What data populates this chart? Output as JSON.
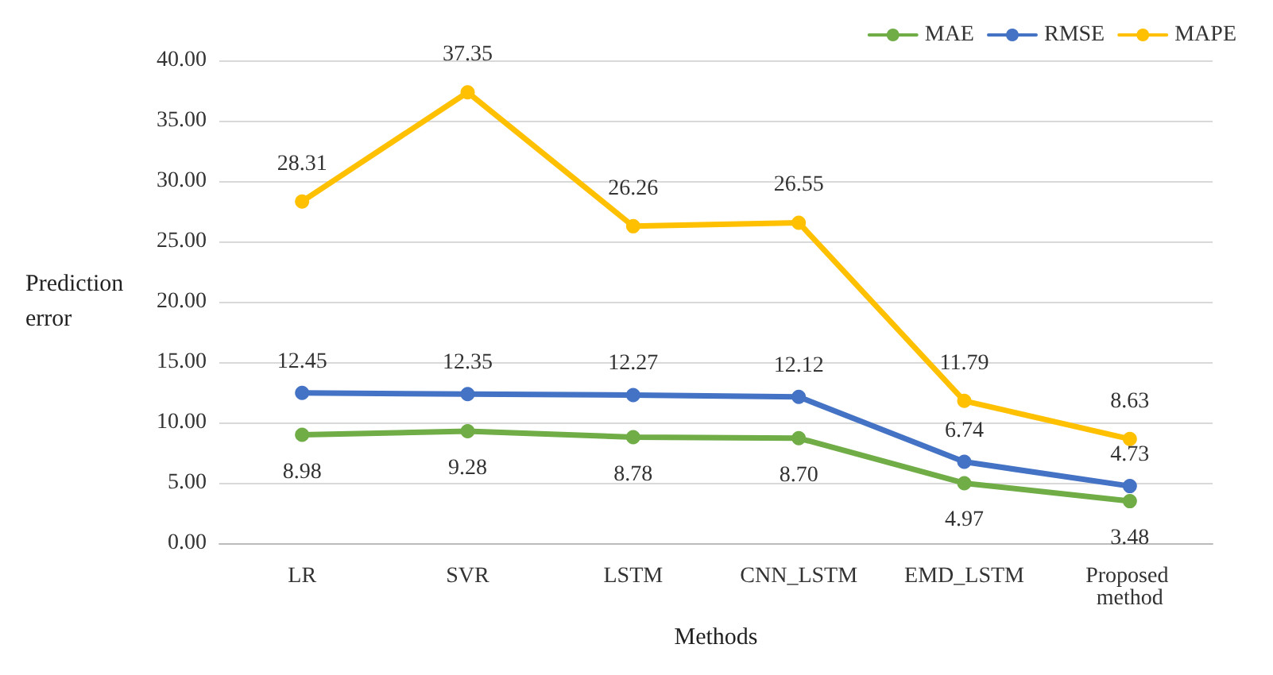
{
  "chart_data": {
    "type": "line",
    "xlabel": "Methods",
    "ylabel": "Prediction error",
    "categories": [
      "LR",
      "SVR",
      "LSTM",
      "CNN_LSTM",
      "EMD_LSTM",
      "Proposed method"
    ],
    "series": [
      {
        "name": "MAE",
        "color": "#70ad47",
        "values": [
          8.98,
          9.28,
          8.78,
          8.7,
          4.97,
          3.48
        ],
        "value_labels": [
          "8.98",
          "9.28",
          "8.78",
          "8.70",
          "4.97",
          "3.48"
        ]
      },
      {
        "name": "RMSE",
        "color": "#4472c4",
        "values": [
          12.45,
          12.35,
          12.27,
          12.12,
          6.74,
          4.73
        ]
      },
      {
        "name": "MAPE",
        "color": "#ffc000",
        "values": [
          28.31,
          37.35,
          26.26,
          26.55,
          11.79,
          8.63
        ]
      }
    ],
    "ylim": [
      0,
      40
    ],
    "yticks": [
      {
        "value": 0,
        "label": "0.00"
      },
      {
        "value": 5,
        "label": "5.00"
      },
      {
        "value": 10,
        "label": "10.00"
      },
      {
        "value": 15,
        "label": "15.00"
      },
      {
        "value": 20,
        "label": "20.00"
      },
      {
        "value": 25,
        "label": "25.00"
      },
      {
        "value": 30,
        "label": "30.00"
      },
      {
        "value": 35,
        "label": "35.00"
      },
      {
        "value": 40,
        "label": "40.00"
      }
    ],
    "grid": "y",
    "legend": "top right",
    "marker": "circle",
    "line_style": "solid",
    "data_labels": true
  }
}
